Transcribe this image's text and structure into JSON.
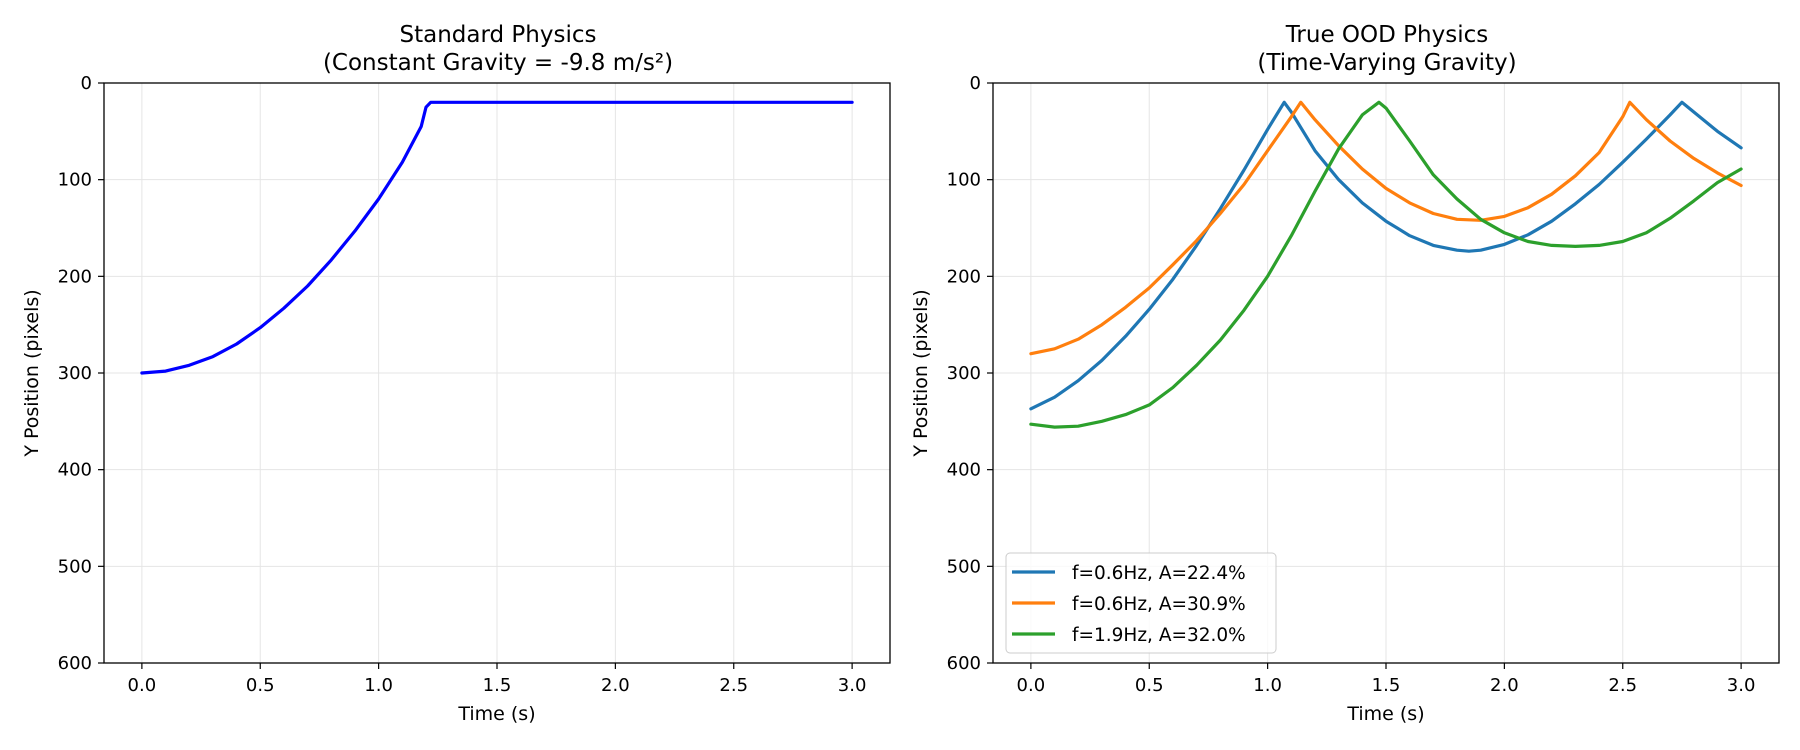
{
  "chart_data": [
    {
      "type": "line",
      "title_line1": "Standard Physics",
      "title_line2": "(Constant Gravity = -9.8 m/s²)",
      "xlabel": "Time (s)",
      "ylabel": "Y Position (pixels)",
      "xlim": [
        -0.16,
        3.16
      ],
      "ylim": [
        600,
        0
      ],
      "y_inverted": true,
      "grid": true,
      "xticks": [
        "0.0",
        "0.5",
        "1.0",
        "1.5",
        "2.0",
        "2.5",
        "3.0"
      ],
      "yticks": [
        "0",
        "100",
        "200",
        "300",
        "400",
        "500",
        "600"
      ],
      "series": [
        {
          "color": "#0000ff",
          "x": [
            0.0,
            0.1,
            0.2,
            0.3,
            0.4,
            0.5,
            0.6,
            0.7,
            0.8,
            0.9,
            1.0,
            1.1,
            1.18,
            1.2,
            1.22,
            1.5,
            2.0,
            2.5,
            3.0
          ],
          "y": [
            300,
            298,
            292,
            283,
            270,
            253,
            233,
            210,
            183,
            153,
            120,
            82,
            45,
            25,
            20,
            20,
            20,
            20,
            20
          ]
        }
      ]
    },
    {
      "type": "line",
      "title_line1": "True OOD Physics",
      "title_line2": "(Time-Varying Gravity)",
      "xlabel": "Time (s)",
      "ylabel": "Y Position (pixels)",
      "xlim": [
        -0.16,
        3.16
      ],
      "ylim": [
        600,
        0
      ],
      "y_inverted": true,
      "grid": true,
      "legend_position": "lower-left",
      "xticks": [
        "0.0",
        "0.5",
        "1.0",
        "1.5",
        "2.0",
        "2.5",
        "3.0"
      ],
      "yticks": [
        "0",
        "100",
        "200",
        "300",
        "400",
        "500",
        "600"
      ],
      "series": [
        {
          "name": "f=0.6Hz, A=22.4%",
          "color": "#1f77b4",
          "x": [
            0.0,
            0.1,
            0.2,
            0.3,
            0.4,
            0.5,
            0.6,
            0.7,
            0.8,
            0.9,
            1.0,
            1.07,
            1.1,
            1.2,
            1.3,
            1.4,
            1.5,
            1.6,
            1.7,
            1.8,
            1.85,
            1.9,
            2.0,
            2.1,
            2.2,
            2.3,
            2.4,
            2.5,
            2.6,
            2.7,
            2.75,
            2.8,
            2.9,
            3.0
          ],
          "y": [
            337,
            325,
            308,
            287,
            262,
            234,
            203,
            168,
            130,
            90,
            48,
            20,
            30,
            70,
            100,
            124,
            143,
            158,
            168,
            173,
            174,
            173,
            167,
            157,
            143,
            125,
            105,
            82,
            58,
            33,
            20,
            30,
            50,
            67
          ]
        },
        {
          "name": "f=0.6Hz, A=30.9%",
          "color": "#ff7f0e",
          "x": [
            0.0,
            0.1,
            0.2,
            0.3,
            0.4,
            0.5,
            0.6,
            0.7,
            0.8,
            0.9,
            1.0,
            1.1,
            1.14,
            1.2,
            1.3,
            1.4,
            1.5,
            1.6,
            1.7,
            1.8,
            1.9,
            2.0,
            2.1,
            2.2,
            2.3,
            2.4,
            2.5,
            2.53,
            2.6,
            2.7,
            2.8,
            2.9,
            3.0
          ],
          "y": [
            280,
            275,
            265,
            250,
            232,
            212,
            188,
            163,
            135,
            105,
            70,
            35,
            20,
            38,
            65,
            89,
            109,
            124,
            135,
            141,
            142,
            138,
            129,
            115,
            96,
            72,
            35,
            20,
            38,
            60,
            78,
            93,
            106
          ]
        },
        {
          "name": "f=1.9Hz, A=32.0%",
          "color": "#2ca02c",
          "x": [
            0.0,
            0.1,
            0.2,
            0.3,
            0.4,
            0.5,
            0.6,
            0.7,
            0.8,
            0.9,
            1.0,
            1.1,
            1.2,
            1.3,
            1.4,
            1.47,
            1.5,
            1.6,
            1.7,
            1.8,
            1.9,
            2.0,
            2.1,
            2.2,
            2.3,
            2.4,
            2.5,
            2.6,
            2.7,
            2.8,
            2.9,
            3.0
          ],
          "y": [
            353,
            356,
            355,
            350,
            343,
            333,
            315,
            292,
            266,
            235,
            200,
            158,
            112,
            68,
            33,
            20,
            26,
            60,
            95,
            120,
            141,
            155,
            164,
            168,
            169,
            168,
            164,
            155,
            140,
            122,
            103,
            89
          ]
        }
      ]
    }
  ]
}
